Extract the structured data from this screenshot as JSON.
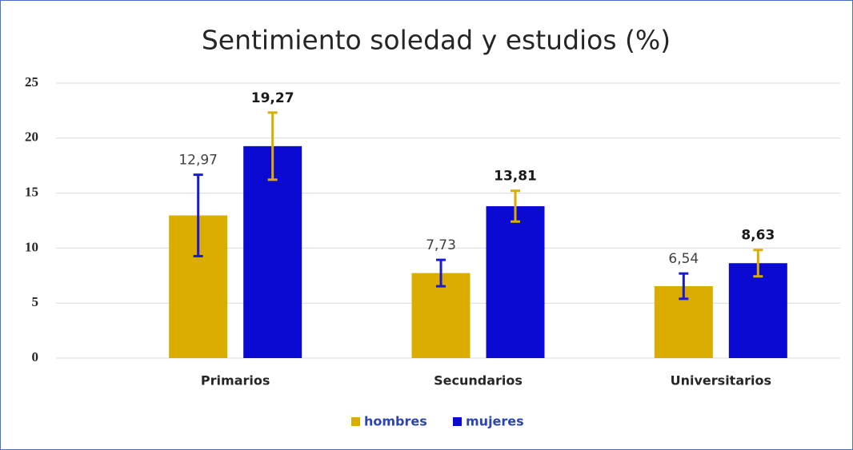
{
  "chart_data": {
    "type": "bar",
    "title": "Sentimiento soledad y estudios (%)",
    "categories": [
      "Primarios",
      "Secundarios",
      "Universitarios"
    ],
    "series": [
      {
        "name": "hombres",
        "color": "#dbad00",
        "error_color": "#1a1ad6",
        "values": [
          12.97,
          7.73,
          6.54
        ],
        "value_labels": [
          "12,97",
          "7,73",
          "6,54"
        ],
        "errors": [
          3.7,
          1.2,
          1.15
        ]
      },
      {
        "name": "mujeres",
        "color": "#0a0ad2",
        "error_color": "#dbad00",
        "values": [
          19.27,
          13.81,
          8.63
        ],
        "value_labels": [
          "19,27",
          "13,81",
          "8,63"
        ],
        "errors": [
          3.05,
          1.4,
          1.2
        ]
      }
    ],
    "ylim": [
      0,
      25
    ],
    "yticks": [
      0,
      5,
      10,
      15,
      20,
      25
    ],
    "grid": true,
    "legend": "bottom"
  }
}
